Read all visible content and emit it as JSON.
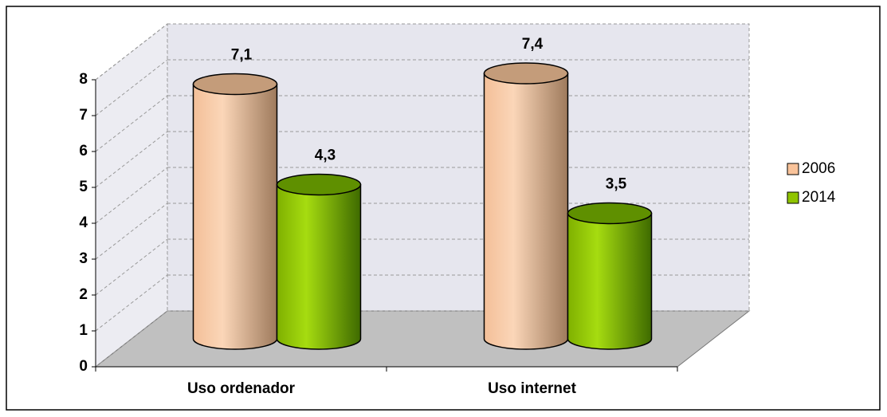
{
  "chart_data": {
    "type": "bar3d",
    "categories": [
      "Uso ordenador",
      "Uso internet"
    ],
    "series": [
      {
        "name": "2006",
        "color": "#f9c39a",
        "values": [
          7.1,
          7.4
        ],
        "value_labels": [
          "7,1",
          "7,4"
        ]
      },
      {
        "name": "2014",
        "color": "#8fc400",
        "values": [
          4.3,
          3.5
        ],
        "value_labels": [
          "4,3",
          "3,5"
        ]
      }
    ],
    "ylim": [
      0,
      8
    ],
    "yticks": [
      0,
      1,
      2,
      3,
      4,
      5,
      6,
      7,
      8
    ],
    "grid": true,
    "legend": "right"
  }
}
